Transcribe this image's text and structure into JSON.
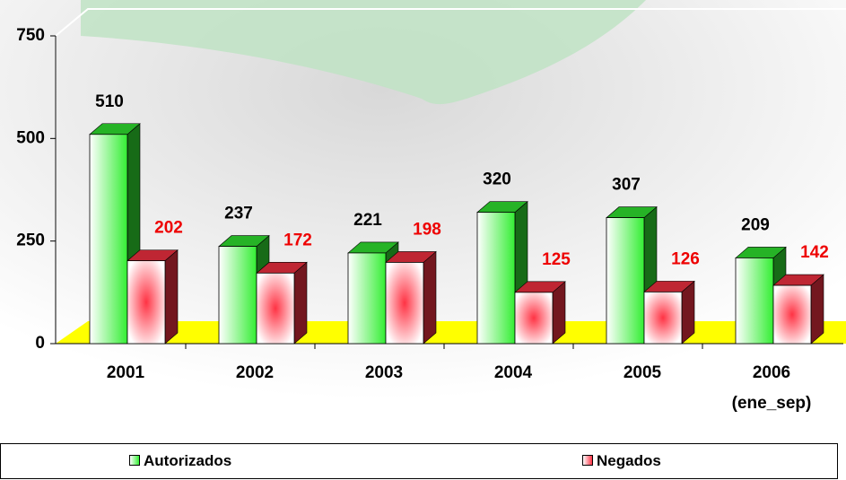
{
  "chart_data": {
    "type": "bar",
    "categories": [
      "2001",
      "2002",
      "2003",
      "2004",
      "2005",
      "2006 (ene_sep)"
    ],
    "series": [
      {
        "name": "Autorizados",
        "color": "#33ee33",
        "values": [
          510,
          237,
          221,
          320,
          307,
          209
        ]
      },
      {
        "name": "Negados",
        "color": "#ff3344",
        "values": [
          202,
          172,
          198,
          125,
          126,
          142
        ]
      }
    ],
    "ylim": [
      0,
      750
    ],
    "yticks": [
      0,
      250,
      500,
      750
    ],
    "legend": "bottom"
  }
}
